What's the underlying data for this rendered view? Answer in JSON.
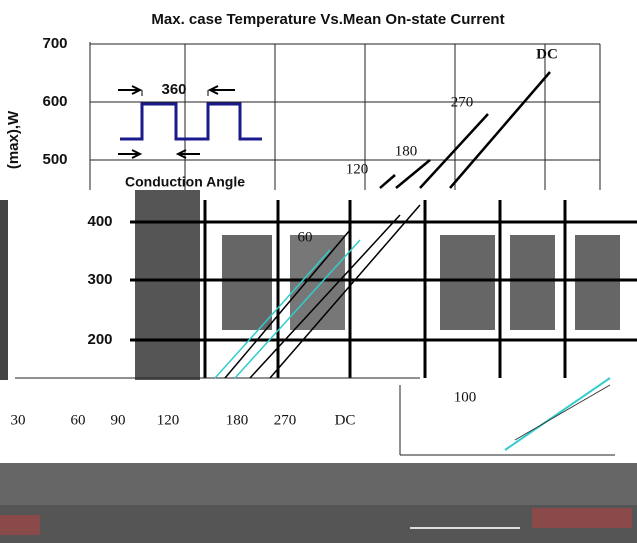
{
  "title": "Max. case Temperature Vs.Mean On-state Current",
  "upper_axis": {
    "y_label": "(max),W",
    "ticks": [
      "700",
      "600",
      "500"
    ]
  },
  "waveform": {
    "period_label": "360",
    "caption": "Conduction Angle"
  },
  "curve_labels": [
    "120",
    "180",
    "270",
    "DC"
  ],
  "lower_axis": {
    "ticks": [
      "400",
      "300",
      "200"
    ],
    "curve_label": "60"
  },
  "bottom_labels": [
    "30",
    "60",
    "90",
    "120",
    "180",
    "270",
    "DC"
  ],
  "inset_label": "100"
}
